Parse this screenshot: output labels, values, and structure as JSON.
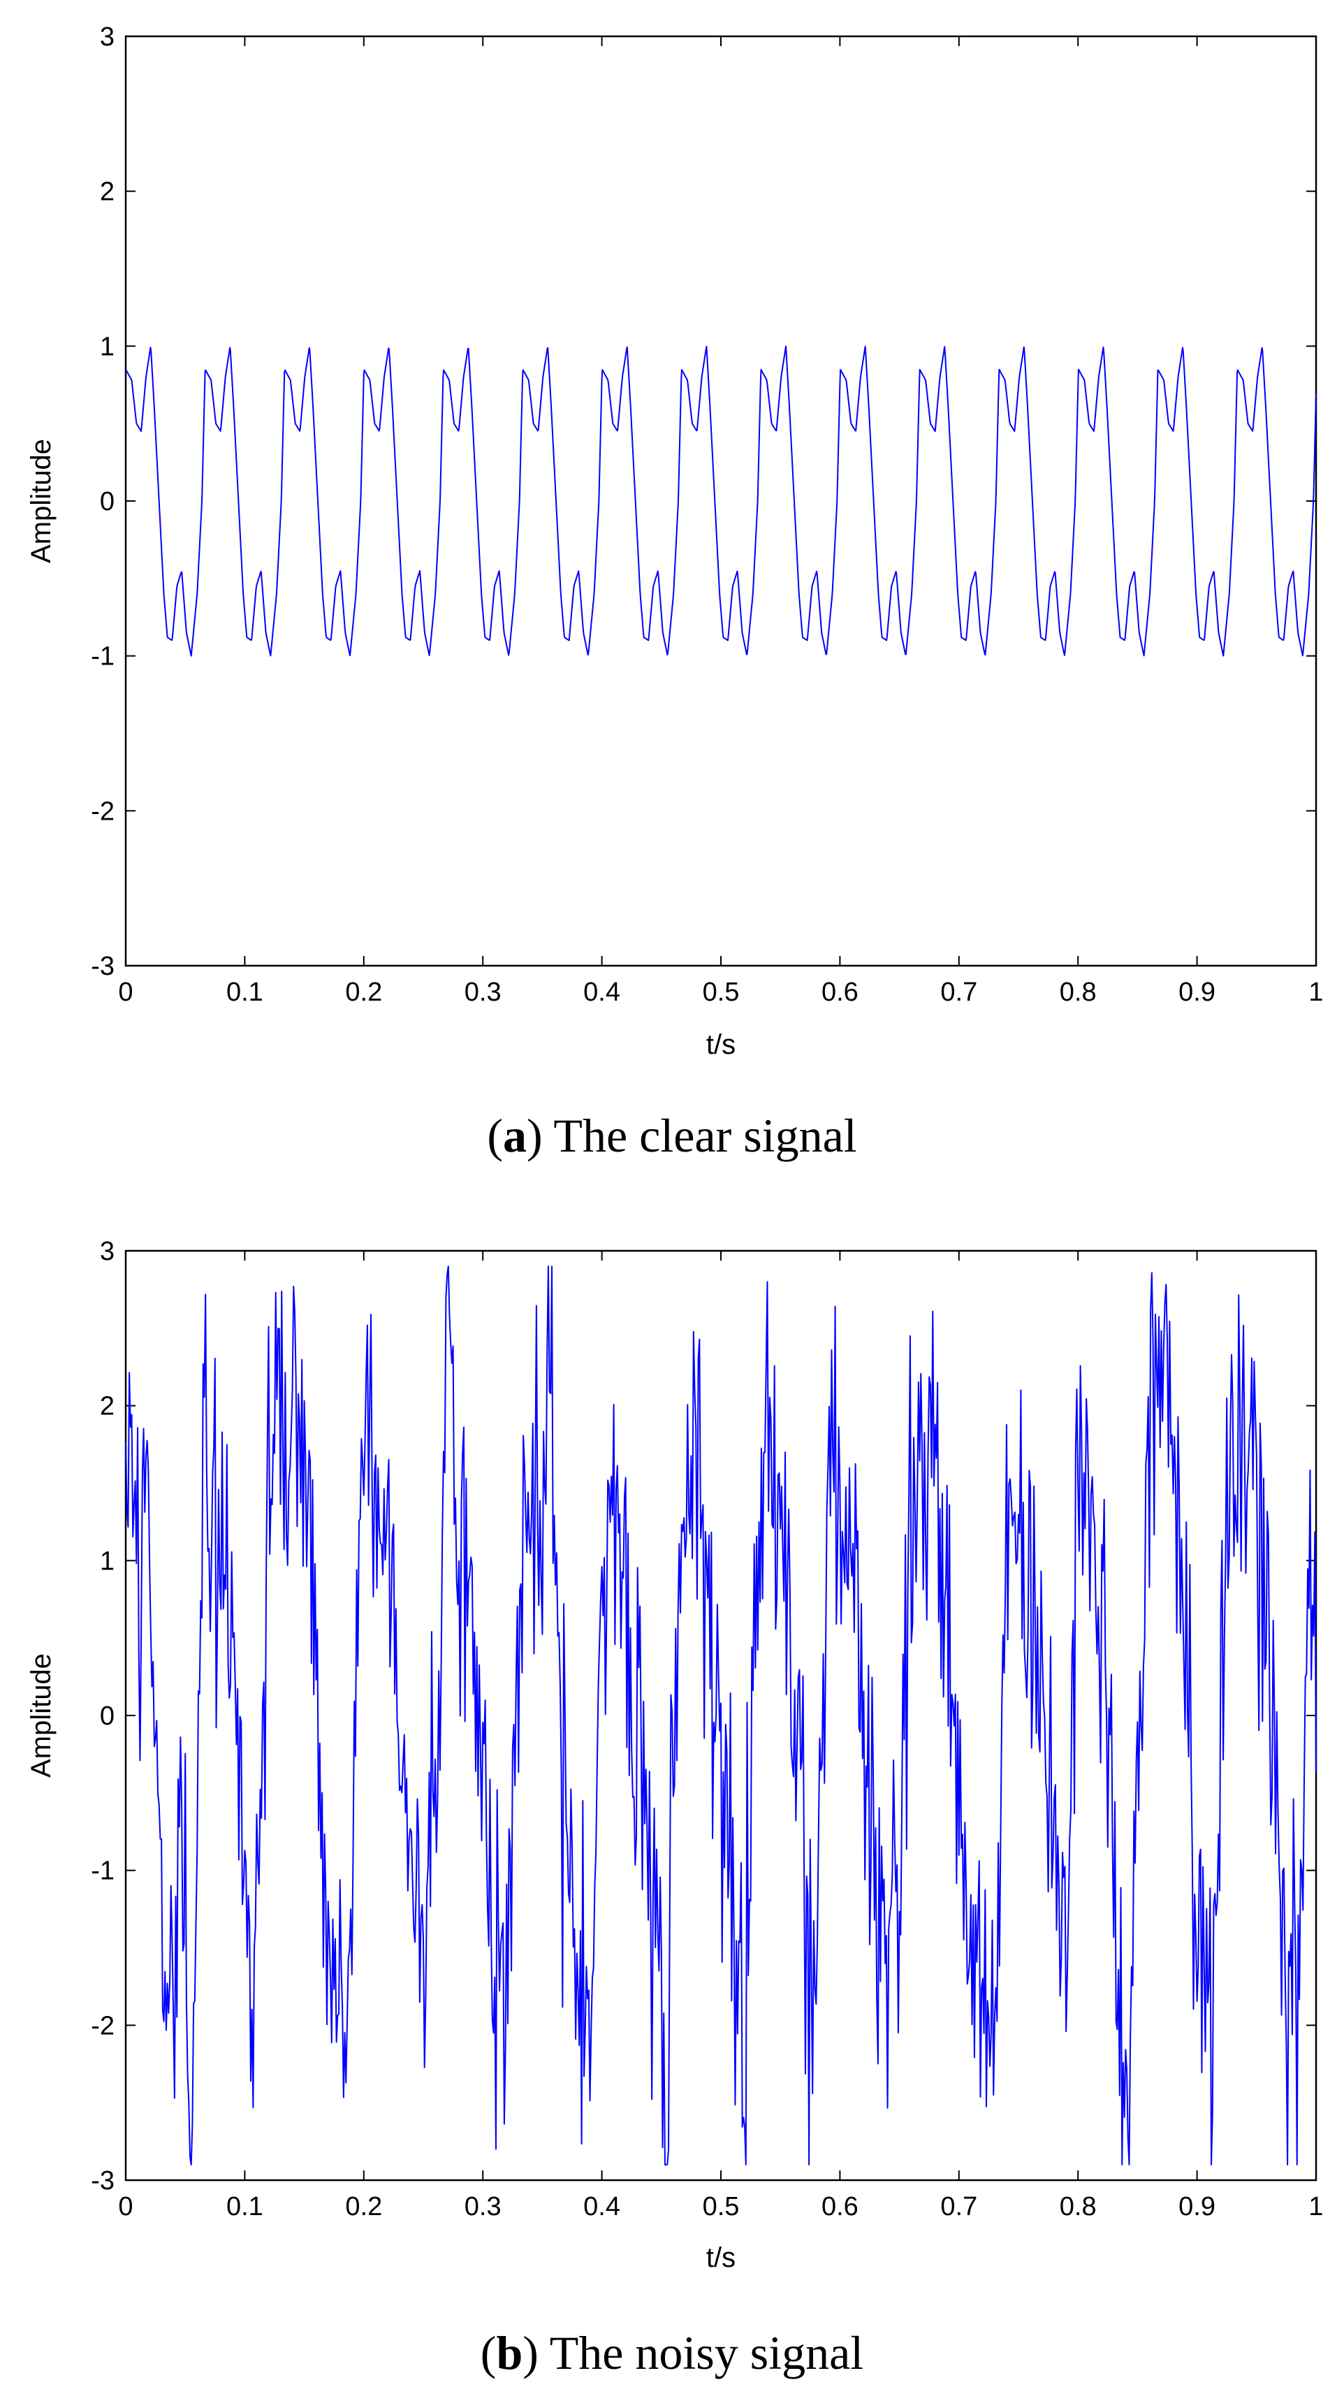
{
  "chart_data": [
    {
      "type": "line",
      "panel_label": "a",
      "caption": "The clear signal",
      "xlabel": "t/s",
      "ylabel": "Amplitude",
      "xlim": [
        0,
        1
      ],
      "ylim": [
        -3,
        3
      ],
      "x_ticks": [
        "0",
        "0.1",
        "0.2",
        "0.3",
        "0.4",
        "0.5",
        "0.6",
        "0.7",
        "0.8",
        "0.9",
        "1"
      ],
      "y_ticks": [
        "-3",
        "-2",
        "-1",
        "0",
        "1",
        "2",
        "3"
      ],
      "grid": false,
      "line_color": "#0000ff",
      "series": [
        {
          "kind": "periodic",
          "period_s": 0.0667,
          "samples": [
            [
              0.0,
              0.85
            ],
            [
              0.005,
              0.78
            ],
            [
              0.009,
              0.5
            ],
            [
              0.013,
              0.45
            ],
            [
              0.017,
              0.8
            ],
            [
              0.021,
              1.0
            ],
            [
              0.024,
              0.6
            ],
            [
              0.028,
              0.0
            ],
            [
              0.032,
              -0.6
            ],
            [
              0.035,
              -0.88
            ],
            [
              0.039,
              -0.9
            ],
            [
              0.043,
              -0.55
            ],
            [
              0.047,
              -0.45
            ],
            [
              0.051,
              -0.85
            ],
            [
              0.055,
              -1.0
            ],
            [
              0.06,
              -0.6
            ],
            [
              0.064,
              0.0
            ],
            [
              0.0667,
              0.85
            ]
          ]
        }
      ]
    },
    {
      "type": "line",
      "panel_label": "b",
      "caption": "The noisy signal",
      "xlabel": "t/s",
      "ylabel": "Amplitude",
      "xlim": [
        0,
        1
      ],
      "ylim": [
        -3,
        3
      ],
      "x_ticks": [
        "0",
        "0.1",
        "0.2",
        "0.3",
        "0.4",
        "0.5",
        "0.6",
        "0.7",
        "0.8",
        "0.9",
        "1"
      ],
      "y_ticks": [
        "-3",
        "-2",
        "-1",
        "0",
        "1",
        "2",
        "3"
      ],
      "grid": false,
      "line_color": "#0000ff",
      "series": [
        {
          "kind": "noisy-periodic",
          "period_s": 0.0667,
          "noise_std": 0.55,
          "samples": [
            [
              0.0,
              1.5
            ],
            [
              0.005,
              2.1
            ],
            [
              0.01,
              0.8
            ],
            [
              0.015,
              1.7
            ],
            [
              0.02,
              0.5
            ],
            [
              0.025,
              0.0
            ],
            [
              0.03,
              -1.0
            ],
            [
              0.035,
              -1.8
            ],
            [
              0.04,
              -1.5
            ],
            [
              0.045,
              -0.6
            ],
            [
              0.05,
              -1.2
            ],
            [
              0.055,
              -2.85
            ],
            [
              0.06,
              -0.5
            ],
            [
              0.065,
              2.05
            ],
            [
              0.07,
              1.0
            ],
            [
              0.08,
              0.9
            ],
            [
              0.09,
              0.4
            ],
            [
              0.1,
              -0.6
            ],
            [
              0.105,
              -2.15
            ],
            [
              0.12,
              1.4
            ],
            [
              0.13,
              2.1
            ],
            [
              0.14,
              1.5
            ],
            [
              0.15,
              1.95
            ],
            [
              0.16,
              0.0
            ],
            [
              0.17,
              -1.6
            ],
            [
              0.18,
              -1.9
            ],
            [
              0.185,
              -2.55
            ],
            [
              0.195,
              1.0
            ],
            [
              0.2,
              2.0
            ],
            [
              0.21,
              1.6
            ],
            [
              0.22,
              1.2
            ],
            [
              0.23,
              0.2
            ],
            [
              0.24,
              -1.2
            ],
            [
              0.25,
              -1.6
            ],
            [
              0.26,
              -0.5
            ],
            [
              0.27,
              2.45
            ],
            [
              0.28,
              1.2
            ],
            [
              0.29,
              1.0
            ],
            [
              0.3,
              -0.5
            ],
            [
              0.31,
              -1.4
            ],
            [
              0.32,
              -1.9
            ],
            [
              0.33,
              0.5
            ],
            [
              0.34,
              1.5
            ],
            [
              0.35,
              1.0
            ],
            [
              0.355,
              2.5
            ],
            [
              0.36,
              1.2
            ],
            [
              0.37,
              -0.5
            ],
            [
              0.38,
              -1.5
            ],
            [
              0.39,
              -1.8
            ],
            [
              0.4,
              1.0
            ],
            [
              0.41,
              1.3
            ],
            [
              0.42,
              0.8
            ],
            [
              0.43,
              0.2
            ],
            [
              0.44,
              -1.0
            ],
            [
              0.45,
              -1.6
            ],
            [
              0.455,
              -2.7
            ],
            [
              0.46,
              0.0
            ],
            [
              0.47,
              1.2
            ],
            [
              0.48,
              2.0
            ],
            [
              0.49,
              0.5
            ],
            [
              0.5,
              -0.5
            ],
            [
              0.51,
              -1.2
            ],
            [
              0.52,
              -1.9
            ],
            [
              0.53,
              1.0
            ],
            [
              0.54,
              2.0
            ],
            [
              0.55,
              1.4
            ],
            [
              0.56,
              0.3
            ],
            [
              0.57,
              -1.0
            ],
            [
              0.58,
              -1.7
            ],
            [
              0.59,
              1.5
            ],
            [
              0.6,
              1.6
            ],
            [
              0.61,
              1.1
            ],
            [
              0.62,
              0.0
            ],
            [
              0.63,
              -1.2
            ],
            [
              0.64,
              -1.7
            ],
            [
              0.65,
              -1.2
            ],
            [
              0.66,
              1.6
            ],
            [
              0.67,
              1.8
            ],
            [
              0.68,
              1.4
            ],
            [
              0.69,
              0.5
            ],
            [
              0.7,
              -0.5
            ],
            [
              0.71,
              -1.5
            ],
            [
              0.72,
              -2.0
            ],
            [
              0.73,
              -2.4
            ],
            [
              0.74,
              1.0
            ],
            [
              0.75,
              1.5
            ],
            [
              0.76,
              1.0
            ],
            [
              0.77,
              0.5
            ],
            [
              0.78,
              -1.0
            ],
            [
              0.79,
              -1.6
            ],
            [
              0.8,
              1.6
            ],
            [
              0.81,
              1.2
            ],
            [
              0.82,
              1.0
            ],
            [
              0.83,
              -1.0
            ],
            [
              0.84,
              -2.7
            ],
            [
              0.85,
              -0.5
            ],
            [
              0.86,
              1.8
            ],
            [
              0.87,
              2.65
            ],
            [
              0.88,
              1.5
            ],
            [
              0.89,
              0.2
            ],
            [
              0.9,
              -1.0
            ],
            [
              0.91,
              -1.7
            ],
            [
              0.92,
              -0.5
            ],
            [
              0.93,
              2.1
            ],
            [
              0.94,
              1.6
            ],
            [
              0.95,
              1.2
            ],
            [
              0.96,
              0.5
            ],
            [
              0.97,
              -1.3
            ],
            [
              0.98,
              -2.1
            ],
            [
              0.985,
              -2.15
            ],
            [
              0.99,
              -0.3
            ],
            [
              0.995,
              1.2
            ],
            [
              1.0,
              0.2
            ]
          ]
        }
      ]
    }
  ]
}
